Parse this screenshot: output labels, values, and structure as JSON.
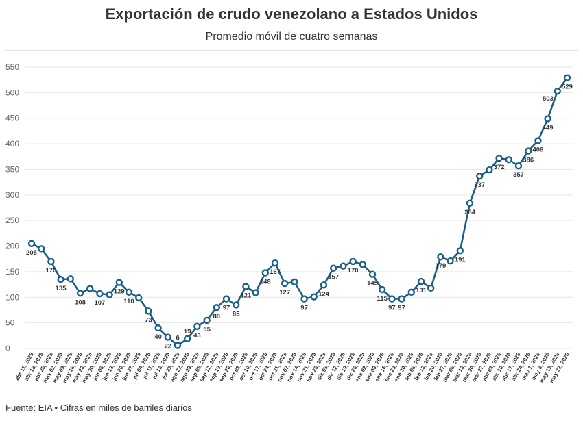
{
  "title": "Exportación de crudo venezolano a Estados Unidos",
  "subtitle": "Promedio móvil de cuatro semanas",
  "source": "Fuente: EIA • Cifras en miles de barriles diarios",
  "colors": {
    "line": "#1a5f86",
    "point_fill": "#ffffff",
    "grid": "#e6e6e6"
  },
  "chart_data": {
    "type": "line",
    "title": "Exportación de crudo venezolano a Estados Unidos",
    "subtitle": "Promedio móvil de cuatro semanas",
    "xlabel": "",
    "ylabel": "",
    "ylim": [
      0,
      550
    ],
    "yticks": [
      0,
      50,
      100,
      150,
      200,
      250,
      300,
      350,
      400,
      450,
      500,
      550
    ],
    "grid": true,
    "categories": [
      "abr 11, 2025",
      "abr 18, 2025",
      "abr 25, 2025",
      "may 02, 2025",
      "may 09, 2025",
      "may 16, 2025",
      "may 23, 2025",
      "may 30, 2025",
      "jun 06, 2025",
      "jun 13, 2025",
      "jun 20, 2025",
      "jun 27, 2025",
      "jul 04, 2025",
      "jul 11, 2025",
      "jul 18, 2025",
      "jul 25, 2025",
      "ago 22, 2025",
      "ago 29, 2025",
      "sep 05, 2025",
      "sep 12, 2025",
      "sep 19, 2025",
      "sep 26, 2025",
      "oct 03, 2025",
      "oct 10, 2025",
      "oct 17, 2025",
      "oct 24, 2025",
      "oct 31, 2025",
      "nov 07, 2025",
      "nov 14, 2025",
      "nov 21, 2025",
      "nov 28, 2025",
      "dic 05, 2025",
      "dic 12, 2025",
      "dic 19, 2025",
      "dic 26, 2025",
      "ene 02, 2026",
      "ene 09, 2026",
      "ene 16, 2026",
      "ene 23, 2026",
      "ene 30, 2026",
      "feb 06, 2026",
      "feb 13, 2026",
      "feb 20, 2026",
      "feb 27, 2026",
      "mar 06, 2026",
      "mar 13, 2026",
      "mar 20, 2026",
      "mar 27, 2026",
      "abr 03, 2026",
      "abr 10, 2026",
      "abr 17, 2026",
      "abr 24, 2026",
      "may 1, 2026",
      "may 8, 2026",
      "may 15, 2026",
      "may 22, 2026"
    ],
    "series": [
      {
        "values": [
          205,
          195,
          170,
          135,
          136,
          108,
          117,
          107,
          105,
          129,
          110,
          99,
          73,
          40,
          22,
          6,
          19,
          43,
          55,
          80,
          97,
          85,
          121,
          109,
          148,
          167,
          127,
          130,
          97,
          101,
          124,
          157,
          161,
          170,
          164,
          145,
          115,
          97,
          97,
          110,
          131,
          118,
          179,
          171,
          191,
          284,
          337,
          349,
          372,
          369,
          357,
          386,
          406,
          449,
          503,
          529
        ]
      }
    ],
    "data_labels": [
      {
        "i": 0,
        "text": "205",
        "pos": "below"
      },
      {
        "i": 2,
        "text": "170",
        "pos": "below"
      },
      {
        "i": 3,
        "text": "135",
        "pos": "below"
      },
      {
        "i": 5,
        "text": "108",
        "pos": "below"
      },
      {
        "i": 7,
        "text": "107",
        "pos": "below"
      },
      {
        "i": 9,
        "text": "129",
        "pos": "below"
      },
      {
        "i": 10,
        "text": "110",
        "pos": "below"
      },
      {
        "i": 12,
        "text": "73",
        "pos": "below"
      },
      {
        "i": 13,
        "text": "40",
        "pos": "below"
      },
      {
        "i": 14,
        "text": "22",
        "pos": "below"
      },
      {
        "i": 15,
        "text": "6",
        "pos": "above"
      },
      {
        "i": 16,
        "text": "19",
        "pos": "above"
      },
      {
        "i": 17,
        "text": "43",
        "pos": "below"
      },
      {
        "i": 18,
        "text": "55",
        "pos": "below"
      },
      {
        "i": 19,
        "text": "80",
        "pos": "below"
      },
      {
        "i": 20,
        "text": "97",
        "pos": "below"
      },
      {
        "i": 21,
        "text": "85",
        "pos": "below"
      },
      {
        "i": 22,
        "text": "121",
        "pos": "below"
      },
      {
        "i": 24,
        "text": "148",
        "pos": "below"
      },
      {
        "i": 25,
        "text": "167",
        "pos": "below"
      },
      {
        "i": 26,
        "text": "127",
        "pos": "below"
      },
      {
        "i": 28,
        "text": "97",
        "pos": "below"
      },
      {
        "i": 30,
        "text": "124",
        "pos": "below"
      },
      {
        "i": 31,
        "text": "157",
        "pos": "below"
      },
      {
        "i": 33,
        "text": "170",
        "pos": "below"
      },
      {
        "i": 35,
        "text": "145",
        "pos": "below"
      },
      {
        "i": 36,
        "text": "115",
        "pos": "below"
      },
      {
        "i": 37,
        "text": "97",
        "pos": "below"
      },
      {
        "i": 38,
        "text": "97",
        "pos": "below"
      },
      {
        "i": 40,
        "text": "131",
        "pos": "below"
      },
      {
        "i": 42,
        "text": "179",
        "pos": "below"
      },
      {
        "i": 44,
        "text": "191",
        "pos": "below"
      },
      {
        "i": 45,
        "text": "284",
        "pos": "below"
      },
      {
        "i": 46,
        "text": "337",
        "pos": "below"
      },
      {
        "i": 48,
        "text": "372",
        "pos": "below"
      },
      {
        "i": 50,
        "text": "357",
        "pos": "below"
      },
      {
        "i": 51,
        "text": "386",
        "pos": "below"
      },
      {
        "i": 52,
        "text": "406",
        "pos": "below"
      },
      {
        "i": 53,
        "text": "449",
        "pos": "below"
      },
      {
        "i": 54,
        "text": "503",
        "pos": "left"
      },
      {
        "i": 55,
        "text": "529",
        "pos": "below"
      }
    ]
  }
}
